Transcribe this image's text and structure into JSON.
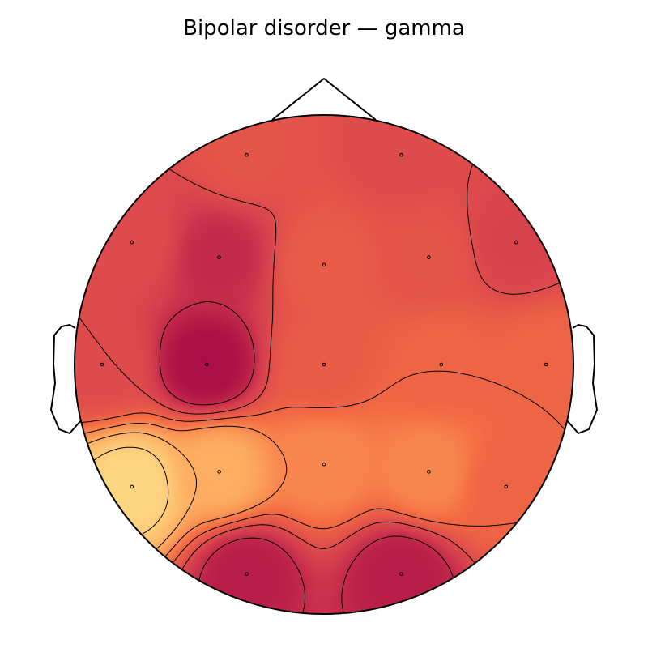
{
  "title": "Bipolar disorder — gamma",
  "chart_data": {
    "type": "heatmap",
    "subtype": "eeg-topographic-map",
    "title": "Bipolar disorder — gamma",
    "colormap": "Spectral (red-orange-yellow portion)",
    "colorbar": false,
    "legend": false,
    "electrodes": [
      {
        "x": -0.31,
        "y": 0.84,
        "value": 0.35
      },
      {
        "x": 0.31,
        "y": 0.84,
        "value": 0.3
      },
      {
        "x": -0.77,
        "y": 0.49,
        "value": 0.3
      },
      {
        "x": -0.42,
        "y": 0.43,
        "value": 0.15
      },
      {
        "x": 0.0,
        "y": 0.4,
        "value": 0.4
      },
      {
        "x": 0.42,
        "y": 0.43,
        "value": 0.35
      },
      {
        "x": 0.77,
        "y": 0.49,
        "value": 0.25
      },
      {
        "x": -0.89,
        "y": 0.0,
        "value": 0.3
      },
      {
        "x": -0.47,
        "y": 0.0,
        "value": 0.05
      },
      {
        "x": 0.0,
        "y": 0.0,
        "value": 0.4
      },
      {
        "x": 0.47,
        "y": 0.0,
        "value": 0.45
      },
      {
        "x": 0.89,
        "y": 0.0,
        "value": 0.45
      },
      {
        "x": -0.77,
        "y": -0.49,
        "value": 0.95
      },
      {
        "x": -0.42,
        "y": -0.43,
        "value": 0.75
      },
      {
        "x": 0.0,
        "y": -0.4,
        "value": 0.6
      },
      {
        "x": 0.42,
        "y": -0.43,
        "value": 0.6
      },
      {
        "x": 0.73,
        "y": -0.49,
        "value": 0.45
      },
      {
        "x": -0.31,
        "y": -0.84,
        "value": 0.1
      },
      {
        "x": 0.31,
        "y": -0.84,
        "value": 0.1
      }
    ]
  }
}
